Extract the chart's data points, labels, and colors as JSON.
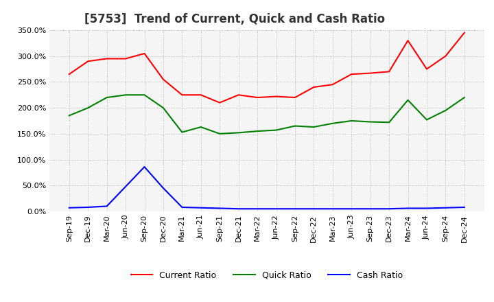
{
  "title": "[5753]  Trend of Current, Quick and Cash Ratio",
  "x_labels": [
    "Sep-19",
    "Dec-19",
    "Mar-20",
    "Jun-20",
    "Sep-20",
    "Dec-20",
    "Mar-21",
    "Jun-21",
    "Sep-21",
    "Dec-21",
    "Mar-22",
    "Jun-22",
    "Sep-22",
    "Dec-22",
    "Mar-23",
    "Jun-23",
    "Sep-23",
    "Dec-23",
    "Mar-24",
    "Jun-24",
    "Sep-24",
    "Dec-24"
  ],
  "current_ratio": [
    265,
    290,
    295,
    295,
    305,
    255,
    225,
    225,
    210,
    225,
    220,
    222,
    220,
    240,
    245,
    265,
    267,
    270,
    330,
    275,
    300,
    345
  ],
  "quick_ratio": [
    185,
    200,
    220,
    225,
    225,
    200,
    153,
    163,
    150,
    152,
    155,
    157,
    165,
    163,
    170,
    175,
    173,
    172,
    215,
    177,
    195,
    220
  ],
  "cash_ratio": [
    7,
    8,
    10,
    48,
    86,
    45,
    8,
    7,
    6,
    5,
    5,
    5,
    5,
    5,
    5,
    5,
    5,
    5,
    6,
    6,
    7,
    8
  ],
  "current_color": "#ff0000",
  "quick_color": "#008000",
  "cash_color": "#0000ff",
  "ylim": [
    0,
    350
  ],
  "yticks": [
    0,
    50,
    100,
    150,
    200,
    250,
    300,
    350
  ],
  "background_color": "#ffffff",
  "plot_bg_color": "#f5f5f5",
  "grid_color": "#aaaaaa",
  "title_fontsize": 12,
  "axis_fontsize": 8,
  "legend_fontsize": 9
}
